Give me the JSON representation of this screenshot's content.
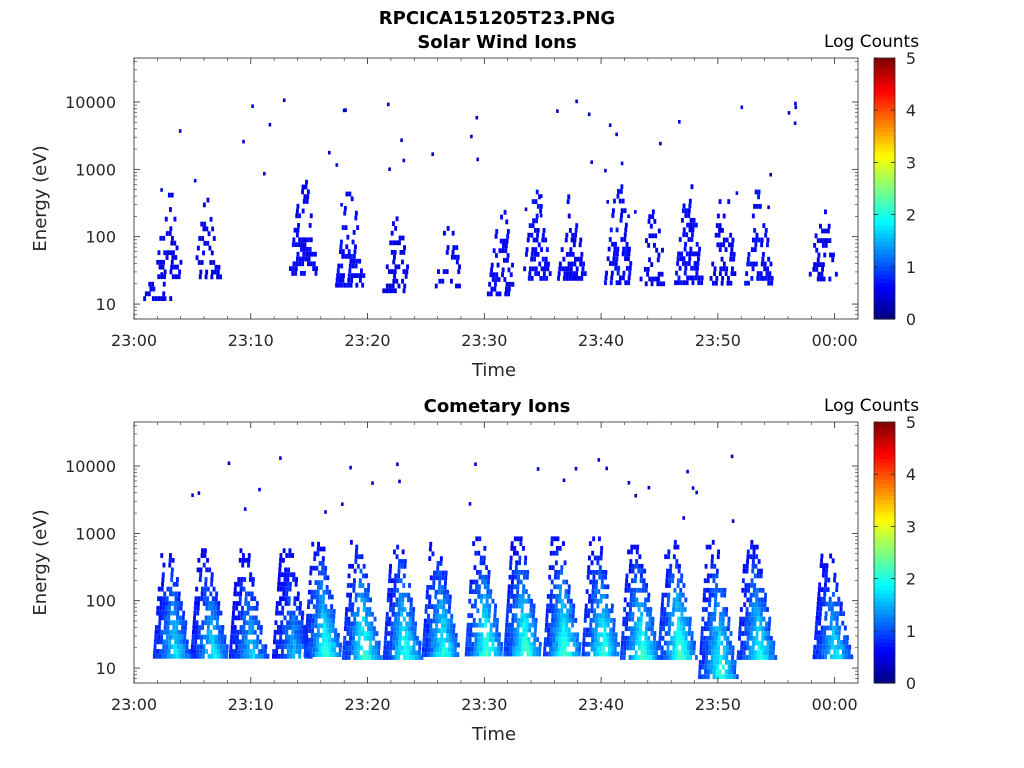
{
  "figure": {
    "title": "RPCICA151205T23.PNG"
  },
  "chart_data": [
    {
      "type": "heatmap",
      "title": "Solar Wind Ions",
      "xlabel": "Time",
      "ylabel": "Energy (eV)",
      "x_tick_labels": [
        "23:00",
        "23:10",
        "23:20",
        "23:30",
        "23:40",
        "23:50",
        "00:00"
      ],
      "y_tick_labels": [
        "10",
        "100",
        "1000",
        "10000"
      ],
      "y_scale": "log",
      "ylim": [
        6,
        45000
      ],
      "xlim_minutes": [
        0,
        62
      ],
      "colorbar": {
        "label": "Log Counts",
        "ticks": [
          "0",
          "1",
          "2",
          "3",
          "4",
          "5"
        ],
        "range": [
          0,
          5
        ],
        "colormap": "jet"
      },
      "clusters": [
        {
          "t_min": 2.0,
          "e_low": 12,
          "e_high": 35,
          "level": 0.4,
          "density": 0.5
        },
        {
          "t_min": 3.0,
          "e_low": 25,
          "e_high": 450,
          "level": 0.4,
          "density": 0.45
        },
        {
          "t_min": 6.3,
          "e_low": 25,
          "e_high": 380,
          "level": 0.4,
          "density": 0.5
        },
        {
          "t_min": 14.5,
          "e_low": 30,
          "e_high": 700,
          "level": 0.45,
          "density": 0.55
        },
        {
          "t_min": 18.5,
          "e_low": 20,
          "e_high": 550,
          "level": 0.5,
          "density": 0.6
        },
        {
          "t_min": 22.5,
          "e_low": 15,
          "e_high": 200,
          "level": 0.4,
          "density": 0.45
        },
        {
          "t_min": 27.0,
          "e_low": 18,
          "e_high": 200,
          "level": 0.4,
          "density": 0.45
        },
        {
          "t_min": 31.5,
          "e_low": 15,
          "e_high": 250,
          "level": 0.45,
          "density": 0.5
        },
        {
          "t_min": 34.5,
          "e_low": 25,
          "e_high": 500,
          "level": 0.5,
          "density": 0.55
        },
        {
          "t_min": 37.5,
          "e_low": 25,
          "e_high": 500,
          "level": 0.45,
          "density": 0.55
        },
        {
          "t_min": 41.5,
          "e_low": 20,
          "e_high": 600,
          "level": 0.5,
          "density": 0.6
        },
        {
          "t_min": 44.5,
          "e_low": 20,
          "e_high": 300,
          "level": 0.4,
          "density": 0.45
        },
        {
          "t_min": 47.5,
          "e_low": 20,
          "e_high": 600,
          "level": 0.5,
          "density": 0.6
        },
        {
          "t_min": 50.5,
          "e_low": 20,
          "e_high": 500,
          "level": 0.4,
          "density": 0.5
        },
        {
          "t_min": 53.5,
          "e_low": 20,
          "e_high": 500,
          "level": 0.5,
          "density": 0.55
        },
        {
          "t_min": 59.0,
          "e_low": 25,
          "e_high": 300,
          "level": 0.4,
          "density": 0.5
        }
      ],
      "sparse_counts": {
        "e_low": 200,
        "e_high": 13000,
        "count": 45,
        "level": 0.3
      }
    },
    {
      "type": "heatmap",
      "title": "Cometary Ions",
      "xlabel": "Time",
      "ylabel": "Energy (eV)",
      "x_tick_labels": [
        "23:00",
        "23:10",
        "23:20",
        "23:30",
        "23:40",
        "23:50",
        "00:00"
      ],
      "y_tick_labels": [
        "10",
        "100",
        "1000",
        "10000"
      ],
      "y_scale": "log",
      "ylim": [
        6,
        45000
      ],
      "xlim_minutes": [
        0,
        62
      ],
      "colorbar": {
        "label": "Log Counts",
        "ticks": [
          "0",
          "1",
          "2",
          "3",
          "4",
          "5"
        ],
        "range": [
          0,
          5
        ],
        "colormap": "jet"
      },
      "clusters": [
        {
          "t_min": 2.8,
          "e_low": 15,
          "e_high": 600,
          "level": 0.9,
          "peak": 1.6
        },
        {
          "t_min": 6.0,
          "e_low": 15,
          "e_high": 600,
          "level": 0.9,
          "peak": 1.6
        },
        {
          "t_min": 9.3,
          "e_low": 15,
          "e_high": 600,
          "level": 0.8,
          "peak": 1.5
        },
        {
          "t_min": 13.0,
          "e_low": 15,
          "e_high": 600,
          "level": 0.8,
          "peak": 1.4
        },
        {
          "t_min": 15.7,
          "e_low": 15,
          "e_high": 750,
          "level": 1.0,
          "peak": 1.9
        },
        {
          "t_min": 19.0,
          "e_low": 15,
          "e_high": 800,
          "level": 1.0,
          "peak": 1.9
        },
        {
          "t_min": 22.5,
          "e_low": 15,
          "e_high": 800,
          "level": 1.0,
          "peak": 1.8
        },
        {
          "t_min": 25.8,
          "e_low": 15,
          "e_high": 750,
          "level": 1.0,
          "peak": 1.8
        },
        {
          "t_min": 29.5,
          "e_low": 15,
          "e_high": 900,
          "level": 1.0,
          "peak": 2.0
        },
        {
          "t_min": 32.8,
          "e_low": 15,
          "e_high": 900,
          "level": 1.0,
          "peak": 2.0
        },
        {
          "t_min": 36.2,
          "e_low": 15,
          "e_high": 900,
          "level": 1.0,
          "peak": 2.0
        },
        {
          "t_min": 39.5,
          "e_low": 15,
          "e_high": 900,
          "level": 1.0,
          "peak": 1.9
        },
        {
          "t_min": 42.8,
          "e_low": 15,
          "e_high": 800,
          "level": 1.0,
          "peak": 1.9
        },
        {
          "t_min": 46.0,
          "e_low": 15,
          "e_high": 800,
          "level": 1.0,
          "peak": 2.0
        },
        {
          "t_min": 49.5,
          "e_low": 8,
          "e_high": 800,
          "level": 1.0,
          "peak": 1.8
        },
        {
          "t_min": 52.8,
          "e_low": 15,
          "e_high": 800,
          "level": 1.0,
          "peak": 1.7
        },
        {
          "t_min": 59.3,
          "e_low": 15,
          "e_high": 500,
          "level": 0.9,
          "peak": 1.6
        }
      ],
      "sparse_counts": {
        "e_low": 1500,
        "e_high": 16000,
        "count": 28,
        "level": 0.3
      }
    }
  ]
}
